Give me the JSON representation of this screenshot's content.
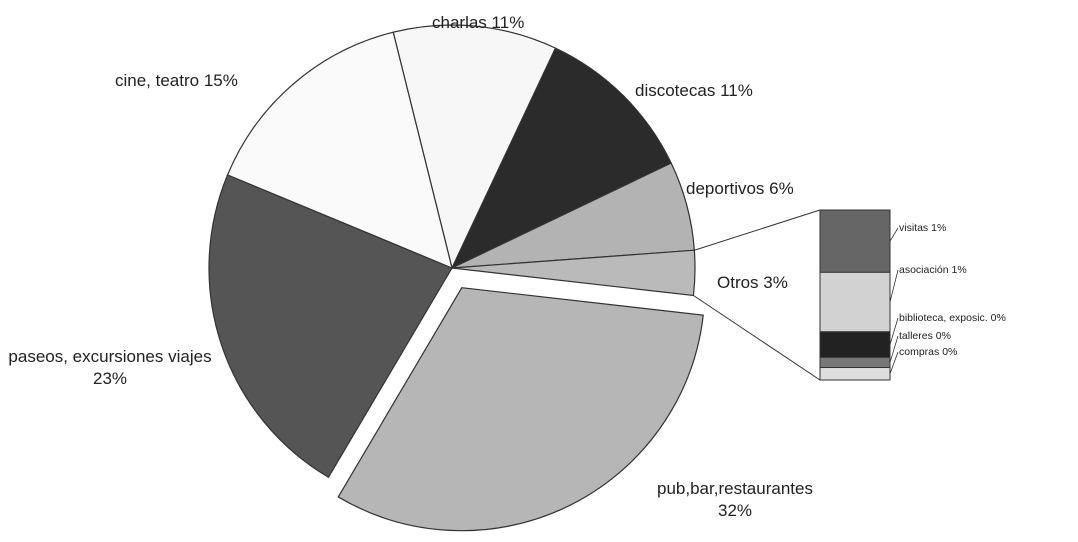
{
  "chart_data": {
    "type": "pie-of-bar",
    "categories": [
      "charlas",
      "discotecas",
      "deportivos",
      "Otros",
      "pub,bar,restaurantes",
      "paseos, excursiones viajes",
      "cine, teatro"
    ],
    "values": [
      11,
      11,
      6,
      3,
      32,
      23,
      15
    ],
    "value_labels": [
      "11%",
      "11%",
      "6%",
      "3%",
      "32%",
      "23%",
      "15%"
    ],
    "colors": [
      "#f7f7f7",
      "#2b2b2b",
      "#b3b3b3",
      "#bababa",
      "#b6b6b6",
      "#555555",
      "#fafafa"
    ],
    "exploded": "pub,bar,restaurantes",
    "bar": {
      "categories": [
        "visitas",
        "asociación",
        "biblioteca, exposic.",
        "talleres",
        "compras"
      ],
      "values": [
        1.1,
        1.05,
        0.45,
        0.18,
        0.22
      ],
      "value_labels": [
        "1%",
        "1%",
        "0%",
        "0%",
        "0%"
      ],
      "colors": [
        "#666666",
        "#d2d2d2",
        "#222222",
        "#777777",
        "#dedede"
      ]
    }
  }
}
